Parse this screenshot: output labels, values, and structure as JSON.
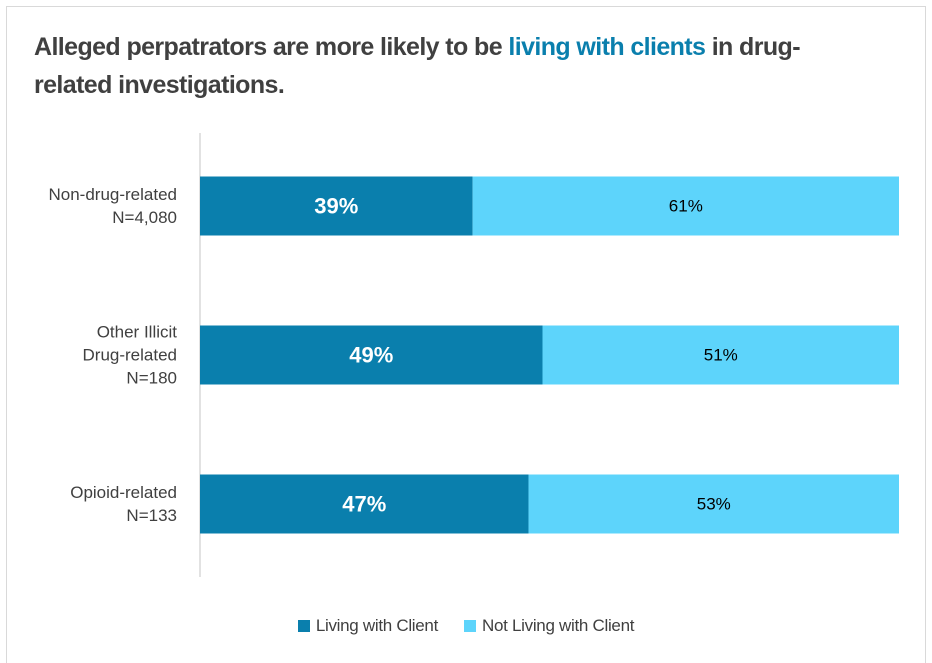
{
  "title": {
    "part1": "Alleged perpatrators are more likely to be ",
    "highlight": "living with clients",
    "part2": " in drug-related investigations."
  },
  "colors": {
    "living": "#0a7fad",
    "not_living": "#5dd4fb",
    "highlight": "#0a7fad",
    "axis": "#d9d9d9",
    "text": "#404040"
  },
  "chart_data": {
    "type": "bar",
    "orientation": "horizontal",
    "stacked": "percent",
    "categories": [
      [
        "Non-drug-related",
        "N=4,080"
      ],
      [
        "Other Illicit",
        "Drug-related",
        "N=180"
      ],
      [
        "Opioid-related",
        "N=133"
      ]
    ],
    "series": [
      {
        "name": "Living with Client",
        "values": [
          39,
          49,
          47
        ],
        "labels": [
          "39%",
          "49%",
          "47%"
        ]
      },
      {
        "name": "Not Living with Client",
        "values": [
          61,
          51,
          53
        ],
        "labels": [
          "61%",
          "51%",
          "53%"
        ]
      }
    ],
    "xlim": [
      0,
      100
    ],
    "grid": false,
    "legend": "bottom"
  }
}
